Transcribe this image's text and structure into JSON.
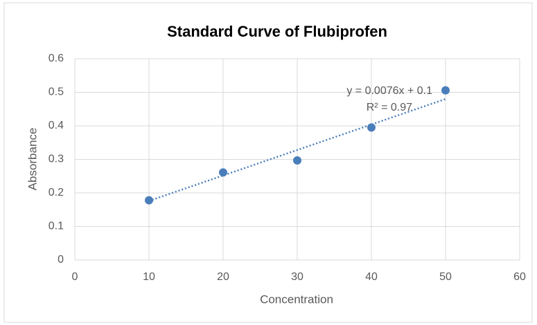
{
  "chart_data": {
    "type": "scatter",
    "title": "Standard Curve of Flubiprofen",
    "x_label": "Concentration",
    "y_label": "Absorbance",
    "series": [
      {
        "name": "Absorbance",
        "color": "#4a7ebb",
        "x": [
          10,
          20,
          30,
          40,
          50
        ],
        "values": [
          0.178,
          0.261,
          0.297,
          0.395,
          0.506
        ]
      }
    ],
    "trendline": {
      "equation": "y = 0.0076x + 0.1",
      "slope": 0.0076,
      "intercept": 0.1,
      "r_squared": "R² = 0.97",
      "color": "#4a7ebb"
    },
    "xlim": [
      0,
      60
    ],
    "xticks": [
      0,
      10,
      20,
      30,
      40,
      50,
      60
    ],
    "ylim": [
      0,
      0.6
    ],
    "yticks": [
      0,
      0.1,
      0.2,
      0.3,
      0.4,
      0.5,
      0.6
    ],
    "grid": true
  }
}
